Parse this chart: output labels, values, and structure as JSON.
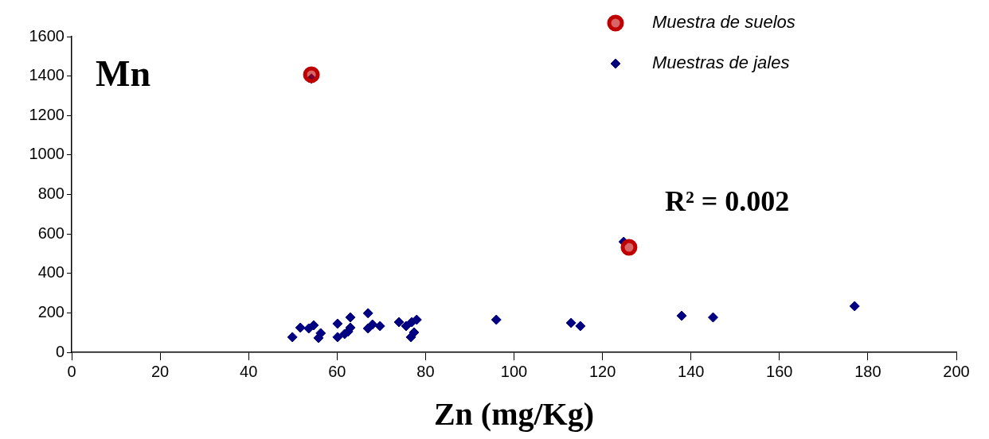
{
  "chart_data": {
    "type": "scatter",
    "ylabel": "Mn",
    "xlabel": "Zn (mg/Kg)",
    "xlim": [
      0,
      200
    ],
    "xticks": [
      0,
      20,
      40,
      60,
      80,
      100,
      120,
      140,
      160,
      180,
      200
    ],
    "ylim": [
      0,
      1600
    ],
    "yticks": [
      0,
      200,
      400,
      600,
      800,
      1000,
      1200,
      1400,
      1600
    ],
    "grid": false,
    "legend": "top right",
    "annotations": [
      "R² = 0.002"
    ],
    "series": [
      {
        "name": "Muestra de suelos",
        "color": "#c00000",
        "marker": "circle",
        "x": [
          54.2,
          126
        ],
        "values": [
          1407,
          532
        ]
      },
      {
        "name": "Muestras de jales",
        "color": "#000080",
        "marker": "diamond",
        "x": [
          49.9,
          51.7,
          53.6,
          54.7,
          56.3,
          55.8,
          60.1,
          60.1,
          63,
          63,
          61.7,
          62.5,
          67,
          67,
          68,
          69.7,
          74,
          75.6,
          76.9,
          78,
          77.4,
          76.7,
          96,
          112.9,
          115,
          137.9,
          145,
          177,
          54.2,
          124.8
        ],
        "values": [
          77,
          125,
          121,
          137,
          97,
          73,
          145,
          77,
          177,
          125,
          93,
          105,
          198,
          121,
          141,
          133,
          153,
          133,
          153,
          165,
          101,
          77,
          165,
          149,
          133,
          185,
          177,
          234,
          1387,
          560
        ]
      }
    ]
  }
}
